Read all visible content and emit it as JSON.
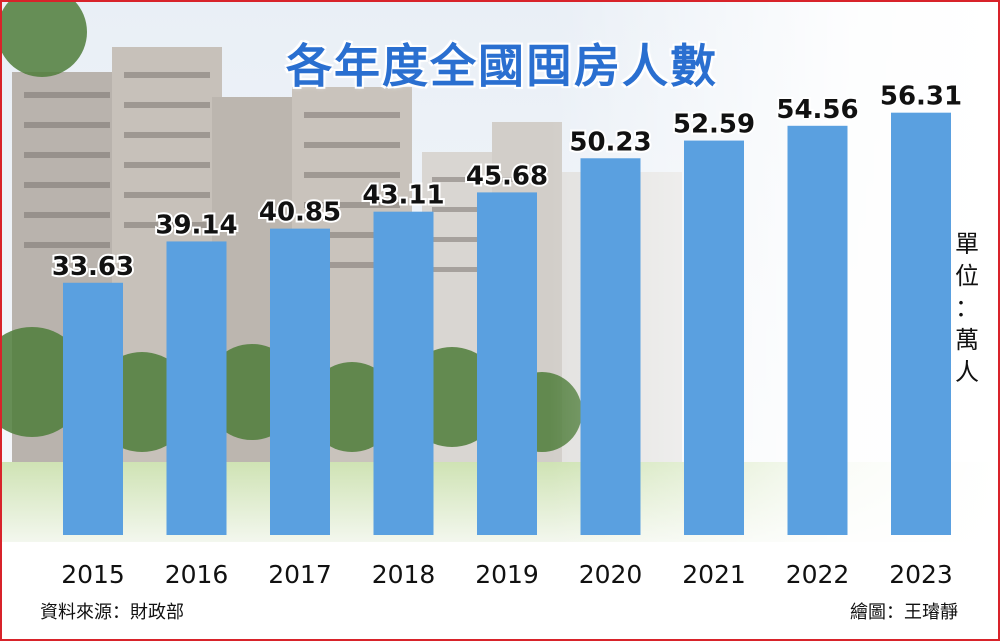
{
  "chart_data": {
    "type": "bar",
    "title": "各年度全國囤房人數",
    "unit_label": "單位：萬人",
    "categories": [
      "2015",
      "2016",
      "2017",
      "2018",
      "2019",
      "2020",
      "2021",
      "2022",
      "2023"
    ],
    "values": [
      33.63,
      39.14,
      40.85,
      43.11,
      45.68,
      50.23,
      52.59,
      54.56,
      56.31
    ],
    "value_labels": [
      "33.63",
      "39.14",
      "40.85",
      "43.11",
      "45.68",
      "50.23",
      "52.59",
      "54.56",
      "56.31"
    ],
    "ylim": [
      0,
      60
    ],
    "grid": false,
    "bar_color": "#5aa0e0"
  },
  "footer": {
    "source": "資料來源：財政部",
    "credit": "繪圖：王璿靜"
  }
}
